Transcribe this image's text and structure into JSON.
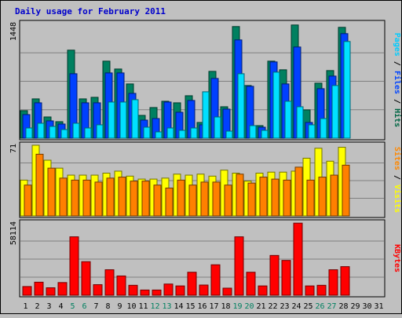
{
  "chart_data": {
    "type": "bar",
    "title": "Daily usage for February 2011",
    "categories": [
      "1",
      "2",
      "3",
      "4",
      "5",
      "6",
      "7",
      "8",
      "9",
      "10",
      "11",
      "12",
      "13",
      "14",
      "15",
      "16",
      "17",
      "18",
      "19",
      "20",
      "21",
      "22",
      "23",
      "24",
      "25",
      "26",
      "27",
      "28",
      "29",
      "30",
      "31"
    ],
    "weekend_days": [
      "5",
      "6",
      "12",
      "13",
      "19",
      "20",
      "26",
      "27"
    ],
    "panels": [
      {
        "id": "hits",
        "ymax_label": "1448",
        "ylim": [
          0,
          1448
        ],
        "axis_label_parts": [
          {
            "text": "Pages",
            "color": "#00ccff"
          },
          {
            "text": " / ",
            "color": "#000000"
          },
          {
            "text": "Files",
            "color": "#0044ff"
          },
          {
            "text": " / ",
            "color": "#000000"
          },
          {
            "text": "Hits",
            "color": "#006644"
          }
        ],
        "series": [
          {
            "name": "Hits",
            "color": "#008060",
            "values": [
              350,
              500,
              270,
              210,
              1120,
              500,
              520,
              980,
              880,
              690,
              290,
              390,
              470,
              450,
              540,
              200,
              850,
              400,
              1420,
              670,
              160,
              980,
              870,
              1440,
              360,
              700,
              860,
              1410
            ]
          },
          {
            "name": "Files",
            "color": "#0040ff",
            "values": [
              300,
              450,
              220,
              180,
              820,
              450,
              450,
              830,
              830,
              570,
              230,
              250,
              460,
              330,
              480,
              170,
              760,
              370,
              1250,
              660,
              140,
              970,
              690,
              1160,
              200,
              630,
              790,
              1330
            ]
          },
          {
            "name": "Pages",
            "color": "#00e0ff",
            "values": [
              130,
              190,
              150,
              110,
              190,
              130,
              170,
              460,
              460,
              490,
              140,
              80,
              130,
              100,
              130,
              590,
              270,
              90,
              820,
              160,
              100,
              840,
              470,
              400,
              170,
              250,
              670,
              1230
            ]
          }
        ]
      },
      {
        "id": "visits",
        "ymax_label": "71",
        "ylim": [
          0,
          71
        ],
        "axis_label_parts": [
          {
            "text": "Sites",
            "color": "#ff8800"
          },
          {
            "text": " / ",
            "color": "#000000"
          },
          {
            "text": "Visits",
            "color": "#ffff00"
          }
        ],
        "series": [
          {
            "name": "Visits",
            "color": "#ffff00",
            "values": [
              36,
              71,
              56,
              48,
              41,
              41,
              41,
              43,
              45,
              40,
              37,
              37,
              38,
              42,
              41,
              42,
              40,
              46,
              43,
              35,
              43,
              44,
              44,
              45,
              58,
              68,
              55,
              69
            ]
          },
          {
            "name": "Sites",
            "color": "#ff8000",
            "values": [
              31,
              62,
              48,
              38,
              36,
              36,
              34,
              38,
              39,
              35,
              35,
              31,
              28,
              36,
              31,
              34,
              34,
              31,
              42,
              33,
              39,
              37,
              36,
              49,
              36,
              39,
              41,
              51
            ]
          }
        ]
      },
      {
        "id": "kbytes",
        "ymax_label": "58114",
        "ylim": [
          0,
          58114
        ],
        "axis_label_parts": [
          {
            "text": "KBytes",
            "color": "#ff0000"
          }
        ],
        "series": [
          {
            "name": "KBytes",
            "color": "#ff0000",
            "values": [
              7000,
              10500,
              6000,
              10200,
              47000,
              27000,
              8500,
              20500,
              15500,
              8000,
              4200,
              4200,
              9000,
              7500,
              18500,
              8200,
              24500,
              5700,
              47000,
              18500,
              7500,
              32000,
              28000,
              58000,
              7500,
              8000,
              20500,
              23000
            ]
          }
        ]
      }
    ]
  }
}
